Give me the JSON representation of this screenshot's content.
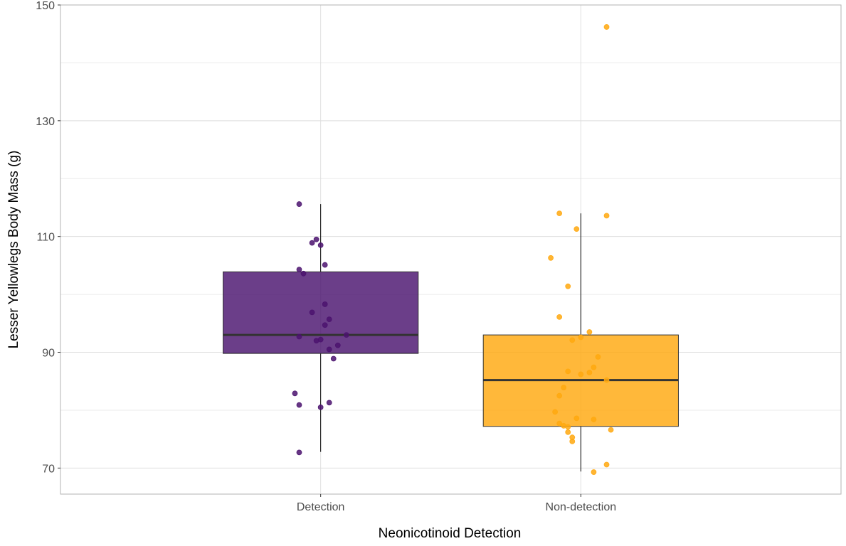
{
  "chart_data": {
    "type": "box",
    "xlabel": "Neonicotinoid Detection",
    "ylabel": "Lesser Yellowlegs Body Mass (g)",
    "ylim": [
      65.5,
      150
    ],
    "yticks": [
      70,
      90,
      110,
      130,
      150
    ],
    "grid": true,
    "legend": "none",
    "categories": [
      "Detection",
      "Non-detection"
    ],
    "series": [
      {
        "category": "Detection",
        "fill_color": "#4b136f",
        "point_color": "#4b136f",
        "box": {
          "lower_whisker": 72.8,
          "q1": 89.8,
          "median": 93.0,
          "q3": 103.9,
          "upper_whisker": 115.6
        },
        "points": [
          {
            "offset": -0.05,
            "y": 115.6
          },
          {
            "offset": -0.01,
            "y": 109.5
          },
          {
            "offset": -0.02,
            "y": 108.9
          },
          {
            "offset": 0.0,
            "y": 108.5
          },
          {
            "offset": 0.01,
            "y": 105.1
          },
          {
            "offset": -0.05,
            "y": 104.3
          },
          {
            "offset": -0.04,
            "y": 103.6
          },
          {
            "offset": 0.01,
            "y": 98.3
          },
          {
            "offset": -0.02,
            "y": 96.9
          },
          {
            "offset": 0.02,
            "y": 95.7
          },
          {
            "offset": 0.01,
            "y": 94.7
          },
          {
            "offset": 0.06,
            "y": 93.0
          },
          {
            "offset": -0.05,
            "y": 92.7
          },
          {
            "offset": 0.0,
            "y": 92.2
          },
          {
            "offset": -0.01,
            "y": 92.0
          },
          {
            "offset": 0.04,
            "y": 91.2
          },
          {
            "offset": 0.02,
            "y": 90.5
          },
          {
            "offset": 0.03,
            "y": 88.9
          },
          {
            "offset": -0.06,
            "y": 82.9
          },
          {
            "offset": 0.02,
            "y": 81.3
          },
          {
            "offset": -0.05,
            "y": 80.9
          },
          {
            "offset": 0.0,
            "y": 80.5
          },
          {
            "offset": -0.05,
            "y": 72.7
          }
        ]
      },
      {
        "category": "Non-detection",
        "fill_color": "#ffa80f",
        "point_color": "#ffa80f",
        "box": {
          "lower_whisker": 69.4,
          "q1": 77.2,
          "median": 85.2,
          "q3": 93.0,
          "upper_whisker": 114.0
        },
        "points": [
          {
            "offset": 0.06,
            "y": 146.2
          },
          {
            "offset": -0.05,
            "y": 114.0
          },
          {
            "offset": 0.06,
            "y": 113.6
          },
          {
            "offset": -0.01,
            "y": 111.3
          },
          {
            "offset": -0.07,
            "y": 106.3
          },
          {
            "offset": -0.03,
            "y": 101.4
          },
          {
            "offset": -0.05,
            "y": 96.1
          },
          {
            "offset": 0.02,
            "y": 93.5
          },
          {
            "offset": 0.0,
            "y": 92.6
          },
          {
            "offset": -0.02,
            "y": 92.1
          },
          {
            "offset": 0.04,
            "y": 89.2
          },
          {
            "offset": 0.03,
            "y": 87.4
          },
          {
            "offset": -0.03,
            "y": 86.7
          },
          {
            "offset": 0.02,
            "y": 86.5
          },
          {
            "offset": 0.0,
            "y": 86.2
          },
          {
            "offset": 0.06,
            "y": 85.2
          },
          {
            "offset": -0.04,
            "y": 83.9
          },
          {
            "offset": -0.05,
            "y": 82.5
          },
          {
            "offset": -0.06,
            "y": 79.7
          },
          {
            "offset": -0.01,
            "y": 78.6
          },
          {
            "offset": 0.03,
            "y": 78.4
          },
          {
            "offset": -0.05,
            "y": 77.7
          },
          {
            "offset": -0.04,
            "y": 77.3
          },
          {
            "offset": -0.03,
            "y": 77.1
          },
          {
            "offset": 0.07,
            "y": 76.6
          },
          {
            "offset": -0.03,
            "y": 76.2
          },
          {
            "offset": -0.02,
            "y": 75.3
          },
          {
            "offset": -0.02,
            "y": 74.6
          },
          {
            "offset": 0.06,
            "y": 70.6
          },
          {
            "offset": 0.03,
            "y": 69.3
          }
        ]
      }
    ]
  }
}
